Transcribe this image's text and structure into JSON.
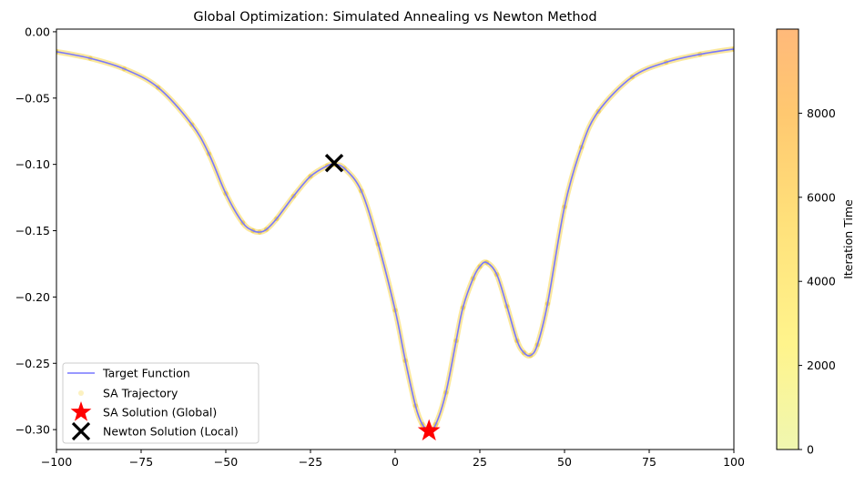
{
  "chart_data": {
    "type": "line",
    "title": "Global Optimization: Simulated Annealing vs Newton Method",
    "xlim": [
      -100,
      100
    ],
    "ylim": [
      -0.315,
      0.002
    ],
    "x_ticks": [
      -100,
      -75,
      -50,
      -25,
      0,
      25,
      50,
      75,
      100
    ],
    "x_tick_labels": [
      "−100",
      "−75",
      "−50",
      "−25",
      "0",
      "25",
      "50",
      "75",
      "100"
    ],
    "y_ticks": [
      0.0,
      -0.05,
      -0.1,
      -0.15,
      -0.2,
      -0.25,
      -0.3
    ],
    "y_tick_labels": [
      "0.00",
      "−0.05",
      "−0.10",
      "−0.15",
      "−0.20",
      "−0.25",
      "−0.30"
    ],
    "series": [
      {
        "name": "Target Function",
        "kind": "line",
        "color": "#7777ff",
        "x": [
          -100,
          -90,
          -80,
          -70,
          -60,
          -55,
          -50,
          -45,
          -42,
          -40,
          -38,
          -35,
          -30,
          -25,
          -20,
          -18,
          -15,
          -10,
          -5,
          0,
          3,
          6,
          8,
          10,
          12,
          15,
          18,
          20,
          23,
          25,
          27,
          30,
          33,
          36,
          38,
          40,
          42,
          45,
          50,
          55,
          60,
          70,
          80,
          90,
          100
        ],
        "y": [
          -0.015,
          -0.02,
          -0.028,
          -0.042,
          -0.07,
          -0.092,
          -0.122,
          -0.144,
          -0.15,
          -0.151,
          -0.149,
          -0.141,
          -0.124,
          -0.109,
          -0.101,
          -0.1,
          -0.103,
          -0.12,
          -0.16,
          -0.21,
          -0.248,
          -0.282,
          -0.296,
          -0.3,
          -0.296,
          -0.272,
          -0.233,
          -0.208,
          -0.186,
          -0.177,
          -0.174,
          -0.183,
          -0.207,
          -0.233,
          -0.242,
          -0.244,
          -0.236,
          -0.205,
          -0.132,
          -0.087,
          -0.06,
          -0.034,
          -0.023,
          -0.017,
          -0.013
        ]
      },
      {
        "name": "SA Trajectory",
        "kind": "scatter",
        "color": "#f7d64a",
        "colorbar_label": "Iteration Time",
        "colorbar_range": [
          0,
          10000
        ],
        "colorbar_ticks": [
          0,
          2000,
          4000,
          6000,
          8000
        ],
        "colorbar_colors": [
          "#f0f7b0",
          "#fff48c",
          "#ffe07a",
          "#ffc870",
          "#ffb97a"
        ]
      },
      {
        "name": "SA Solution (Global)",
        "kind": "marker",
        "marker": "star",
        "color": "#ff0000",
        "x": [
          10
        ],
        "y": [
          -0.301
        ]
      },
      {
        "name": "Newton Solution (Local)",
        "kind": "marker",
        "marker": "x",
        "color": "#000000",
        "x": [
          -18
        ],
        "y": [
          -0.099
        ]
      }
    ],
    "legend_position": "lower-left",
    "grid": false
  }
}
